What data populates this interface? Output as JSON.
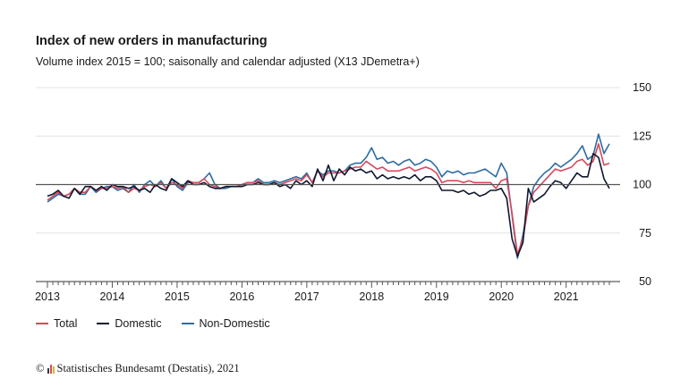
{
  "title": "Index of new orders in manufacturing",
  "subtitle": "Volume index 2015 = 100; saisonally and calendar adjusted (X13 JDemetra+)",
  "source": {
    "copyright": "©",
    "text": "Statistisches Bundesamt (Destatis), 2021"
  },
  "chart_data": {
    "type": "line",
    "x": [
      "2013-01",
      "2013-02",
      "2013-03",
      "2013-04",
      "2013-05",
      "2013-06",
      "2013-07",
      "2013-08",
      "2013-09",
      "2013-10",
      "2013-11",
      "2013-12",
      "2014-01",
      "2014-02",
      "2014-03",
      "2014-04",
      "2014-05",
      "2014-06",
      "2014-07",
      "2014-08",
      "2014-09",
      "2014-10",
      "2014-11",
      "2014-12",
      "2015-01",
      "2015-02",
      "2015-03",
      "2015-04",
      "2015-05",
      "2015-06",
      "2015-07",
      "2015-08",
      "2015-09",
      "2015-10",
      "2015-11",
      "2015-12",
      "2016-01",
      "2016-02",
      "2016-03",
      "2016-04",
      "2016-05",
      "2016-06",
      "2016-07",
      "2016-08",
      "2016-09",
      "2016-10",
      "2016-11",
      "2016-12",
      "2017-01",
      "2017-02",
      "2017-03",
      "2017-04",
      "2017-05",
      "2017-06",
      "2017-07",
      "2017-08",
      "2017-09",
      "2017-10",
      "2017-11",
      "2017-12",
      "2018-01",
      "2018-02",
      "2018-03",
      "2018-04",
      "2018-05",
      "2018-06",
      "2018-07",
      "2018-08",
      "2018-09",
      "2018-10",
      "2018-11",
      "2018-12",
      "2019-01",
      "2019-02",
      "2019-03",
      "2019-04",
      "2019-05",
      "2019-06",
      "2019-07",
      "2019-08",
      "2019-09",
      "2019-10",
      "2019-11",
      "2019-12",
      "2020-01",
      "2020-02",
      "2020-03",
      "2020-04",
      "2020-05",
      "2020-06",
      "2020-07",
      "2020-08",
      "2020-09",
      "2020-10",
      "2020-11",
      "2020-12",
      "2021-01",
      "2021-02",
      "2021-03",
      "2021-04",
      "2021-05",
      "2021-06",
      "2021-07",
      "2021-08",
      "2021-09"
    ],
    "x_tick_labels": [
      "2013",
      "2014",
      "2015",
      "2016",
      "2017",
      "2018",
      "2019",
      "2020",
      "2021"
    ],
    "y_ticks": [
      50,
      75,
      100,
      125,
      150
    ],
    "ylim": [
      50,
      150
    ],
    "reference_line": 100,
    "legend_position": "bottom-left",
    "grid": true,
    "series": [
      {
        "name": "Total",
        "color": "#d9485a",
        "values": [
          92,
          94,
          96,
          94,
          95,
          98,
          96,
          96,
          99,
          97,
          98,
          98,
          99,
          98,
          99,
          96,
          98,
          97,
          99,
          100,
          99,
          101,
          98,
          101,
          100,
          98,
          102,
          101,
          101,
          103,
          100,
          99,
          98,
          99,
          99,
          99,
          100,
          101,
          101,
          102,
          100,
          100,
          101,
          100,
          101,
          102,
          103,
          102,
          105,
          101,
          107,
          104,
          106,
          106,
          106,
          107,
          108,
          109,
          109,
          112,
          110,
          108,
          109,
          107,
          107,
          107,
          108,
          109,
          107,
          108,
          109,
          108,
          106,
          101,
          102,
          102,
          102,
          101,
          102,
          101,
          101,
          101,
          101,
          98,
          102,
          103,
          85,
          64,
          72,
          89,
          96,
          99,
          102,
          105,
          108,
          107,
          108,
          109,
          112,
          113,
          110,
          112,
          121,
          110,
          111
        ]
      },
      {
        "name": "Domestic",
        "color": "#10172f",
        "values": [
          94,
          95,
          97,
          94,
          93,
          98,
          95,
          99,
          99,
          97,
          99,
          97,
          100,
          99,
          99,
          98,
          99,
          97,
          98,
          96,
          100,
          98,
          97,
          103,
          101,
          99,
          102,
          100,
          100,
          101,
          99,
          98,
          98,
          99,
          99,
          99,
          99,
          100,
          100,
          101,
          100,
          100,
          101,
          99,
          100,
          98,
          102,
          100,
          102,
          99,
          108,
          102,
          110,
          102,
          108,
          105,
          109,
          107,
          108,
          106,
          107,
          103,
          105,
          103,
          104,
          103,
          104,
          103,
          105,
          102,
          104,
          104,
          102,
          97,
          97,
          97,
          96,
          97,
          95,
          96,
          94,
          95,
          97,
          97,
          98,
          93,
          72,
          63,
          70,
          98,
          91,
          93,
          95,
          99,
          102,
          101,
          98,
          102,
          106,
          104,
          104,
          116,
          114,
          103,
          98
        ]
      },
      {
        "name": "Non-Domestic",
        "color": "#2d6ca2",
        "values": [
          91,
          93,
          95,
          94,
          95,
          98,
          95,
          95,
          99,
          96,
          98,
          99,
          99,
          97,
          98,
          96,
          100,
          96,
          100,
          102,
          99,
          102,
          98,
          103,
          99,
          97,
          101,
          101,
          101,
          103,
          106,
          100,
          98,
          98,
          99,
          99,
          100,
          101,
          101,
          103,
          101,
          101,
          102,
          101,
          102,
          103,
          104,
          103,
          106,
          101,
          107,
          105,
          107,
          107,
          106,
          107,
          110,
          111,
          111,
          114,
          119,
          113,
          114,
          111,
          112,
          110,
          112,
          113,
          110,
          111,
          113,
          112,
          109,
          104,
          107,
          106,
          107,
          105,
          106,
          106,
          107,
          108,
          106,
          104,
          111,
          106,
          84,
          62,
          74,
          89,
          99,
          103,
          106,
          108,
          111,
          109,
          111,
          113,
          116,
          120,
          113,
          115,
          126,
          116,
          121
        ]
      }
    ]
  }
}
